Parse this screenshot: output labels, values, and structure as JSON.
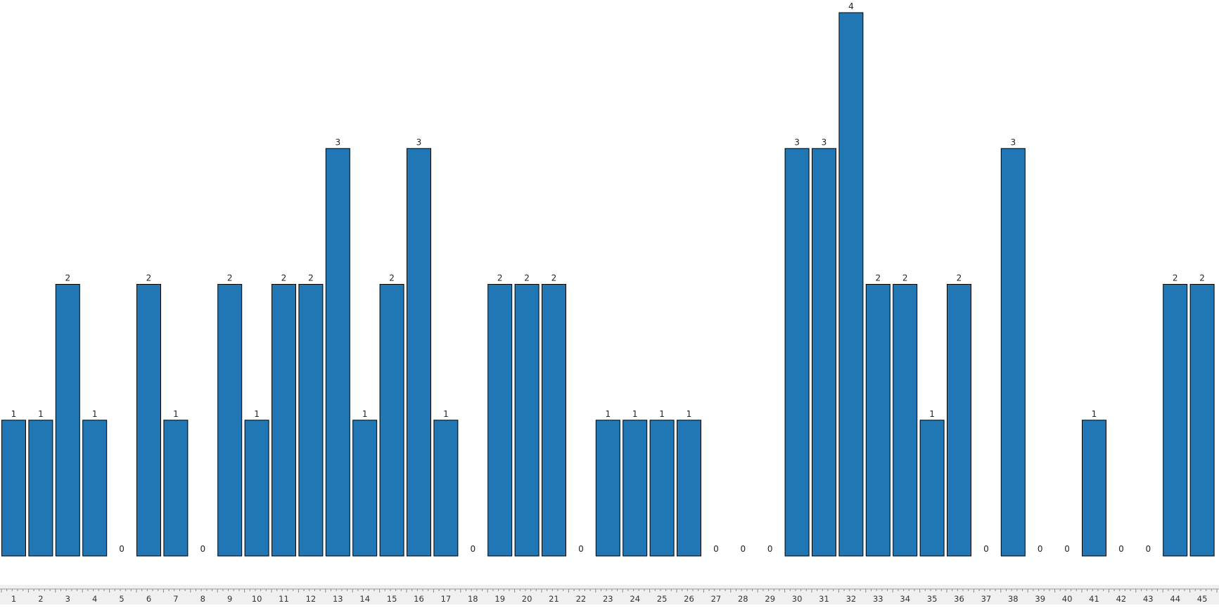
{
  "chart_data": {
    "type": "bar",
    "title": "",
    "xlabel": "",
    "ylabel": "",
    "categories": [
      "1",
      "2",
      "3",
      "4",
      "5",
      "6",
      "7",
      "8",
      "9",
      "10",
      "11",
      "12",
      "13",
      "14",
      "15",
      "16",
      "17",
      "18",
      "19",
      "20",
      "21",
      "22",
      "23",
      "24",
      "25",
      "26",
      "27",
      "28",
      "29",
      "30",
      "31",
      "32",
      "33",
      "34",
      "35",
      "36",
      "37",
      "38",
      "39",
      "40",
      "41",
      "42",
      "43",
      "44",
      "45"
    ],
    "values": [
      1,
      1,
      2,
      1,
      0,
      2,
      1,
      0,
      2,
      1,
      2,
      2,
      3,
      1,
      2,
      3,
      1,
      0,
      2,
      2,
      2,
      0,
      1,
      1,
      1,
      1,
      0,
      0,
      0,
      3,
      3,
      4,
      2,
      2,
      1,
      2,
      0,
      3,
      0,
      0,
      1,
      0,
      0,
      2,
      2
    ],
    "ylim": [
      0,
      4
    ],
    "grid": false,
    "legend": "none",
    "show_data_labels": true,
    "bar_color": "#2077b4",
    "bar_edge_color": "#000000",
    "axis_band_color": "#f0f0f0",
    "axis_text_color": "#333333"
  }
}
